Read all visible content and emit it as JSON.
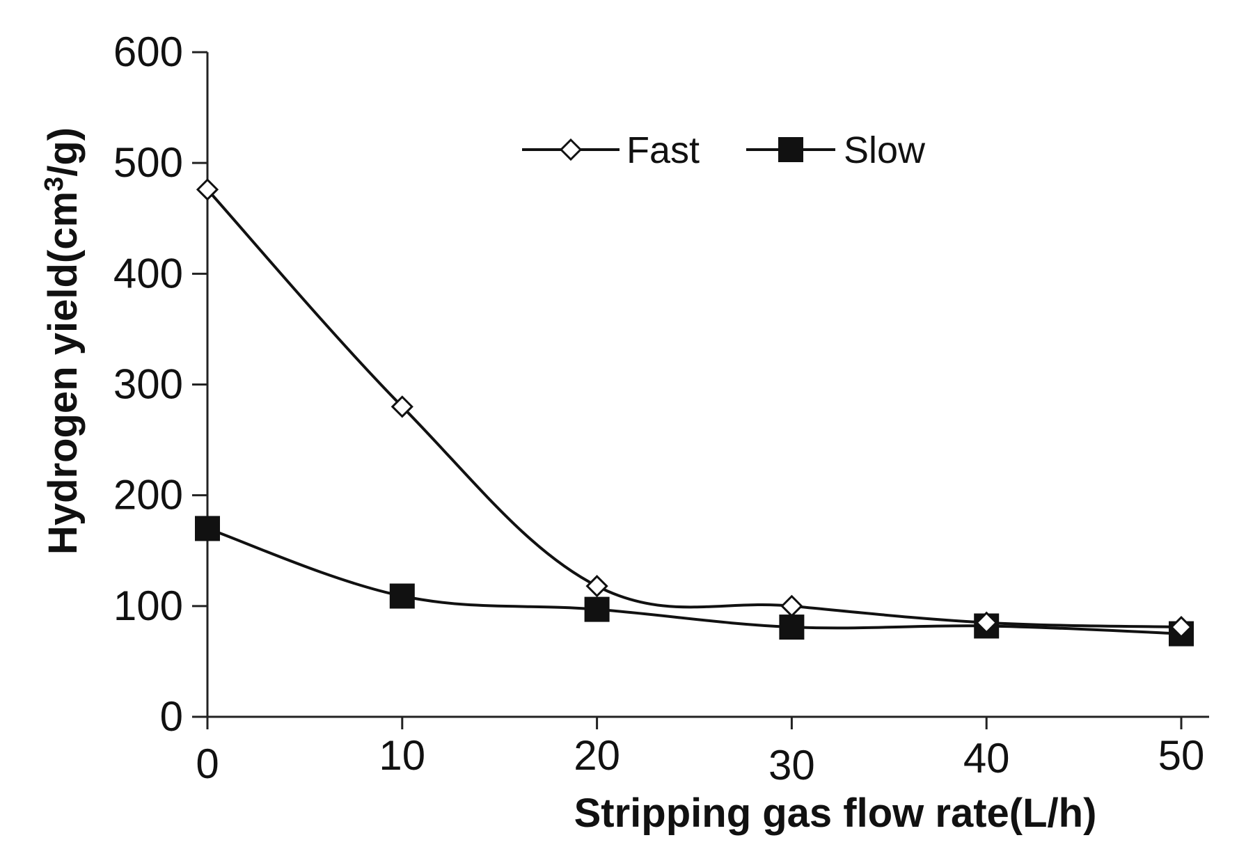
{
  "chart_data": {
    "type": "line",
    "title": "",
    "xlabel": "Stripping gas flow rate(L/h)",
    "ylabel": "Hydrogen yield(cm³/g)",
    "ylabel_parts": {
      "before": "Hydrogen yield(cm",
      "sup": "3",
      "after": "/g)"
    },
    "x": [
      0,
      10,
      20,
      30,
      40,
      50
    ],
    "xlim": [
      0,
      50
    ],
    "ylim": [
      0,
      600
    ],
    "x_ticks": [
      "0",
      "10",
      "20",
      "30",
      "40",
      "50"
    ],
    "y_ticks": [
      "0",
      "100",
      "200",
      "300",
      "400",
      "500",
      "600"
    ],
    "grid": false,
    "legend_position": "top-center",
    "series": [
      {
        "name": "Fast",
        "marker": "open-diamond",
        "values": [
          476,
          280,
          118,
          100,
          85,
          81
        ]
      },
      {
        "name": "Slow",
        "marker": "filled-square",
        "values": [
          170,
          109,
          97,
          81,
          82,
          75
        ]
      }
    ]
  }
}
